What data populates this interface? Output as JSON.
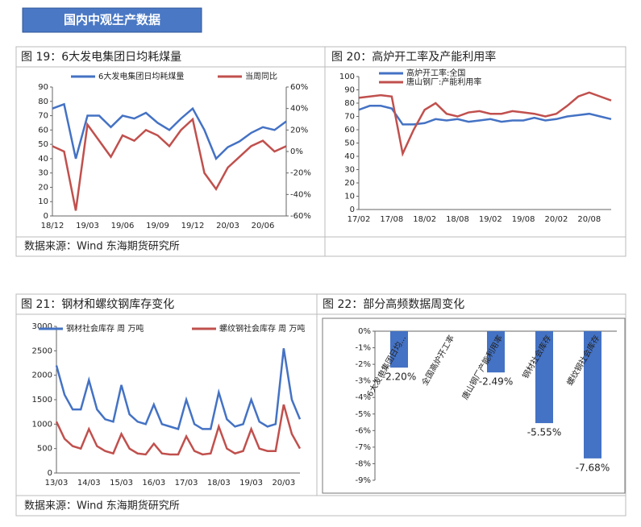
{
  "header": {
    "title": "国内中观生产数据"
  },
  "sources": [
    "数据来源：Wind   东海期货研究所",
    "数据来源：Wind   东海期货研究所"
  ],
  "chart_data": [
    {
      "type": "line",
      "title": "图 19：6大发电集团日均耗煤量",
      "categories": [
        "18/12",
        null,
        null,
        "19/03",
        null,
        null,
        "19/06",
        null,
        null,
        "19/09",
        null,
        null,
        "19/12",
        null,
        null,
        "20/03",
        null,
        null,
        "20/06",
        null,
        null
      ],
      "series": [
        {
          "name": "6大发电集团日均耗煤量",
          "color": "#4472c4",
          "values": [
            75,
            78,
            40,
            70,
            70,
            62,
            70,
            68,
            72,
            65,
            60,
            68,
            75,
            60,
            40,
            48,
            52,
            58,
            62,
            60,
            66
          ]
        },
        {
          "name": "当周同比",
          "color": "#c0504d",
          "axis": "y2",
          "values": [
            5,
            0,
            -55,
            25,
            10,
            -5,
            15,
            10,
            20,
            15,
            5,
            20,
            30,
            -20,
            -35,
            -15,
            -5,
            5,
            10,
            0,
            5
          ]
        }
      ],
      "ylim": [
        0,
        90
      ],
      "yticks": [
        0,
        10,
        20,
        30,
        40,
        50,
        60,
        70,
        80,
        90
      ],
      "y2lim": [
        -60,
        60
      ],
      "y2ticks": [
        {
          "value": -60,
          "label": "-60%"
        },
        {
          "value": -40,
          "label": "-40%"
        },
        {
          "value": -20,
          "label": "-20%"
        },
        {
          "value": 0,
          "label": "0%"
        },
        {
          "value": 20,
          "label": "20%"
        },
        {
          "value": 40,
          "label": "40%"
        },
        {
          "value": 60,
          "label": "60%"
        }
      ]
    },
    {
      "type": "line",
      "title": "图 20：高炉开工率及产能利用率",
      "categories": [
        "17/02",
        null,
        null,
        "17/08",
        null,
        null,
        "18/02",
        null,
        null,
        "18/08",
        null,
        null,
        "19/02",
        null,
        null,
        "19/08",
        null,
        null,
        "20/02",
        null,
        null,
        "20/08",
        null,
        null
      ],
      "series": [
        {
          "name": "高炉开工率:全国",
          "color": "#4472c4",
          "values": [
            75,
            78,
            78,
            76,
            64,
            64,
            65,
            68,
            67,
            68,
            66,
            67,
            68,
            66,
            67,
            67,
            69,
            67,
            68,
            70,
            71,
            72,
            70,
            68
          ]
        },
        {
          "name": "唐山钢厂:产能利用率",
          "color": "#c0504d",
          "values": [
            84,
            85,
            86,
            85,
            42,
            60,
            75,
            80,
            72,
            70,
            73,
            74,
            72,
            72,
            74,
            73,
            72,
            70,
            72,
            78,
            85,
            88,
            85,
            82
          ]
        }
      ],
      "ylim": [
        0,
        100
      ],
      "yticks": [
        0,
        10,
        20,
        30,
        40,
        50,
        60,
        70,
        80,
        90,
        100
      ]
    },
    {
      "type": "line",
      "title": "图 21：钢材和螺纹钢库存变化",
      "categories": [
        "13/03",
        null,
        null,
        null,
        "14/03",
        null,
        null,
        null,
        "15/03",
        null,
        null,
        null,
        "16/03",
        null,
        null,
        null,
        "17/03",
        null,
        null,
        null,
        "18/03",
        null,
        null,
        null,
        "19/03",
        null,
        null,
        null,
        "20/03",
        null,
        null
      ],
      "series": [
        {
          "name": "钢材社会库存 周 万吨",
          "color": "#4472c4",
          "values": [
            2200,
            1600,
            1300,
            1300,
            1900,
            1300,
            1100,
            1050,
            1800,
            1200,
            1050,
            1000,
            1400,
            1000,
            950,
            900,
            1500,
            1000,
            900,
            900,
            1650,
            1100,
            950,
            1000,
            1500,
            1050,
            950,
            1000,
            2550,
            1500,
            1100
          ]
        },
        {
          "name": "螺纹钢社会库存 周 万吨",
          "color": "#c0504d",
          "values": [
            1050,
            700,
            550,
            500,
            900,
            550,
            450,
            400,
            800,
            500,
            400,
            380,
            600,
            400,
            380,
            380,
            750,
            450,
            380,
            400,
            950,
            500,
            400,
            450,
            900,
            500,
            450,
            450,
            1400,
            800,
            500
          ]
        }
      ],
      "ylim": [
        0,
        3000
      ],
      "yticks": [
        0,
        500,
        1000,
        1500,
        2000,
        2500,
        3000
      ]
    },
    {
      "type": "bar",
      "title": "图 22：部分高频数据周变化",
      "categories": [
        "6大发电集团日均...",
        "全国高炉开工率",
        "唐山钢厂产能利用率",
        "钢材社会库存",
        "螺纹钢社会库存"
      ],
      "values": [
        -2.2,
        0,
        -2.49,
        -5.55,
        -7.68
      ],
      "value_labels": [
        "-2.20%",
        null,
        "-2.49%",
        "-5.55%",
        "-7.68%"
      ],
      "color": "#4472c4",
      "ylim": [
        -9,
        0
      ],
      "yticks": [
        {
          "value": 0,
          "label": "0%"
        },
        {
          "value": -1,
          "label": "-1%"
        },
        {
          "value": -2,
          "label": "-2%"
        },
        {
          "value": -3,
          "label": "-3%"
        },
        {
          "value": -4,
          "label": "-4%"
        },
        {
          "value": -5,
          "label": "-5%"
        },
        {
          "value": -6,
          "label": "-6%"
        },
        {
          "value": -7,
          "label": "-7%"
        },
        {
          "value": -8,
          "label": "-8%"
        },
        {
          "value": -9,
          "label": "-9%"
        }
      ]
    }
  ]
}
